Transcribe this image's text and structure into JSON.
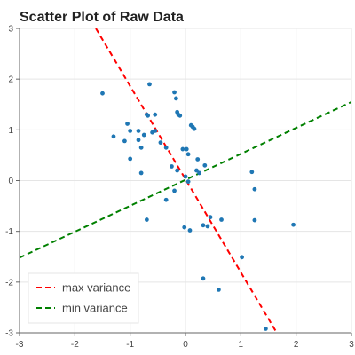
{
  "chart_data": {
    "type": "scatter",
    "title": "Scatter Plot of Raw Data",
    "xlabel": "",
    "ylabel": "",
    "xlim": [
      -3,
      3
    ],
    "ylim": [
      -3,
      3
    ],
    "x_ticks": [
      -3,
      -2,
      -1,
      0,
      1,
      2,
      3
    ],
    "y_ticks": [
      -3,
      -2,
      -1,
      0,
      1,
      2,
      3
    ],
    "grid": true,
    "legend_position": "bottom-left",
    "points": {
      "color": "#1f77b4",
      "x": [
        -1.5,
        -0.65,
        -0.2,
        -0.17,
        -0.15,
        -0.1,
        -0.13,
        0.1,
        0.13,
        0.16,
        -1.05,
        -1.0,
        -0.85,
        -0.7,
        -0.68,
        -0.55,
        -0.6,
        -1.3,
        -1.1,
        -0.85,
        -0.8,
        -0.75,
        -0.55,
        -0.45,
        -0.35,
        -0.05,
        0.02,
        0.05,
        0.22,
        0.35,
        -1.0,
        -0.25,
        -0.15,
        -0.8,
        0.2,
        0.25,
        0.0,
        0.05,
        -0.2,
        -0.35,
        -0.7,
        0.45,
        0.65,
        0.4,
        0.32,
        1.2,
        1.25,
        1.25,
        1.95,
        -0.02,
        0.08,
        1.02,
        0.32,
        0.6,
        1.45
      ],
      "y": [
        1.72,
        1.9,
        1.74,
        1.62,
        1.35,
        1.28,
        1.3,
        1.09,
        1.06,
        1.02,
        1.12,
        0.98,
        0.98,
        1.3,
        1.28,
        1.3,
        0.95,
        0.87,
        0.78,
        0.8,
        0.65,
        0.9,
        0.98,
        0.75,
        0.65,
        0.62,
        0.62,
        0.52,
        0.42,
        0.3,
        0.43,
        0.28,
        0.2,
        0.15,
        0.2,
        0.15,
        0.08,
        -0.02,
        -0.2,
        -0.38,
        -0.77,
        -0.72,
        -0.77,
        -0.9,
        -0.88,
        0.17,
        -0.17,
        -0.78,
        -0.87,
        -0.92,
        -0.98,
        -1.51,
        -1.93,
        -2.15,
        -2.92
      ]
    },
    "series": [
      {
        "name": "max variance",
        "color": "#ff0000",
        "dash": "dashed",
        "x": [
          -1.62,
          1.65
        ],
        "y": [
          3.0,
          -3.0
        ]
      },
      {
        "name": "min variance",
        "color": "#008000",
        "dash": "dashed",
        "x": [
          -3.0,
          3.0
        ],
        "y": [
          -1.52,
          1.55
        ]
      }
    ]
  }
}
